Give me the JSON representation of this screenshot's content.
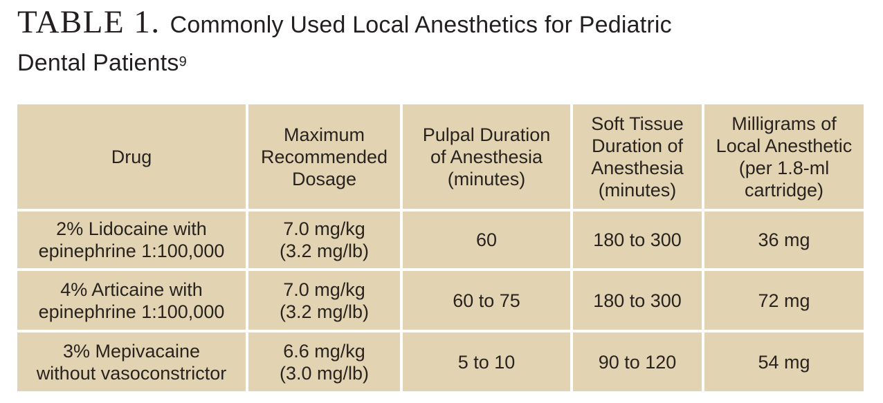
{
  "title": {
    "label": "TABLE 1.",
    "line1": "Commonly Used Local Anesthetics for Pediatric",
    "line2": "Dental Patients",
    "reference": "9"
  },
  "colors": {
    "cell-bg": "#e2d4b2",
    "divider": "#ffffff",
    "text": "#29231f",
    "title-text": "#231f20"
  },
  "table": {
    "columns": [
      "Drug",
      "Maximum\nRecommended\nDosage",
      "Pulpal Duration\nof Anesthesia\n(minutes)",
      "Soft Tissue\nDuration of\nAnesthesia\n(minutes)",
      "Milligrams of\nLocal Anesthetic\n(per 1.8-ml\ncartridge)"
    ],
    "rows": [
      {
        "cells": [
          "2% Lidocaine with\nepinephrine 1:100,000",
          "7.0 mg/kg\n(3.2 mg/lb)",
          "60",
          "180 to 300",
          "36 mg"
        ]
      },
      {
        "cells": [
          "4% Articaine with\nepinephrine 1:100,000",
          "7.0 mg/kg\n(3.2 mg/lb)",
          "60 to 75",
          "180 to 300",
          "72 mg"
        ]
      },
      {
        "cells": [
          "3% Mepivacaine\nwithout vasoconstrictor",
          "6.6 mg/kg\n(3.0 mg/lb)",
          "5 to 10",
          "90 to 120",
          "54 mg"
        ]
      }
    ]
  }
}
